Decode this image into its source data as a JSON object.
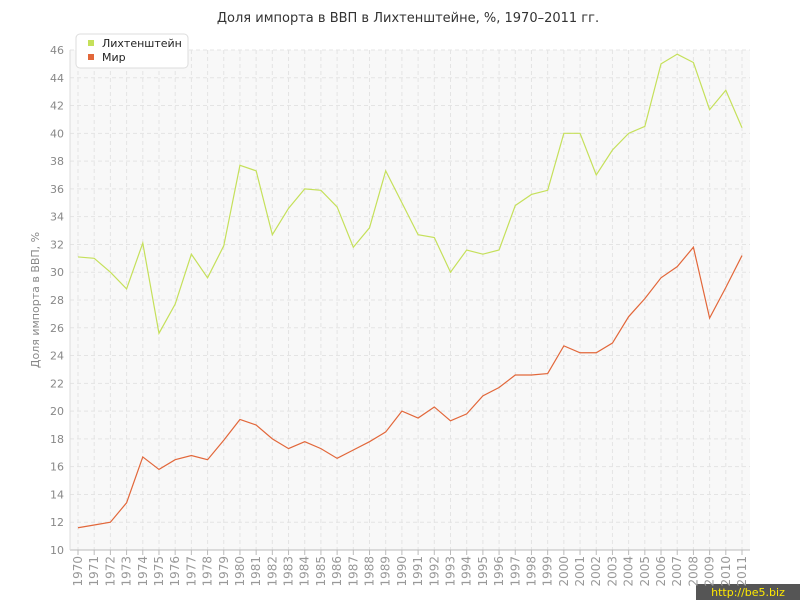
{
  "chart_data": {
    "type": "line",
    "title": "Доля импорта в ВВП в Лихтенштейне, %, 1970–2011 гг.",
    "y_label": "Доля импорта в ВВП, %",
    "watermark": "http://be5.biz",
    "legend": "top-left",
    "grid": true,
    "x": [
      1970,
      1971,
      1972,
      1973,
      1974,
      1975,
      1976,
      1977,
      1978,
      1979,
      1980,
      1981,
      1982,
      1983,
      1984,
      1985,
      1986,
      1987,
      1988,
      1989,
      1990,
      1991,
      1992,
      1993,
      1994,
      1995,
      1996,
      1997,
      1998,
      1999,
      2000,
      2001,
      2002,
      2003,
      2004,
      2005,
      2006,
      2007,
      2008,
      2009,
      2010,
      2011
    ],
    "xlim": [
      1970,
      2011
    ],
    "xticks": [
      1970,
      1971,
      1972,
      1973,
      1974,
      1975,
      1976,
      1977,
      1978,
      1979,
      1980,
      1981,
      1982,
      1983,
      1984,
      1985,
      1986,
      1987,
      1988,
      1989,
      1990,
      1991,
      1992,
      1993,
      1994,
      1995,
      1996,
      1997,
      1998,
      1999,
      2000,
      2001,
      2002,
      2003,
      2004,
      2005,
      2006,
      2007,
      2008,
      2009,
      2010,
      2011
    ],
    "ylim": [
      10,
      46
    ],
    "yticks": [
      10,
      12,
      14,
      16,
      18,
      20,
      22,
      24,
      26,
      28,
      30,
      32,
      34,
      36,
      38,
      40,
      42,
      44,
      46
    ],
    "series": [
      {
        "name": "Лихтенштейн",
        "color": "#c5e05a",
        "values": [
          31.1,
          31.0,
          30.0,
          28.8,
          32.1,
          25.6,
          27.7,
          31.3,
          29.6,
          31.9,
          37.7,
          37.3,
          32.7,
          34.6,
          36.0,
          35.9,
          34.7,
          31.8,
          33.2,
          37.3,
          35.0,
          32.7,
          32.5,
          30.0,
          31.6,
          31.3,
          31.6,
          34.8,
          35.6,
          35.9,
          40.0,
          40.0,
          37.0,
          38.8,
          40.0,
          40.5,
          45.0,
          45.7,
          45.1,
          41.7,
          43.1,
          40.4
        ]
      },
      {
        "name": "Мир",
        "color": "#e2673a",
        "values": [
          11.6,
          11.8,
          12.0,
          13.4,
          16.7,
          15.8,
          16.5,
          16.8,
          16.5,
          17.9,
          19.4,
          19.0,
          18.0,
          17.3,
          17.8,
          17.3,
          16.6,
          17.2,
          17.8,
          18.5,
          20.0,
          19.5,
          20.3,
          19.3,
          19.8,
          21.1,
          21.7,
          22.6,
          22.6,
          22.7,
          24.7,
          24.2,
          24.2,
          24.9,
          26.8,
          28.1,
          29.6,
          30.4,
          31.8,
          26.7,
          28.9,
          31.2
        ]
      }
    ]
  }
}
